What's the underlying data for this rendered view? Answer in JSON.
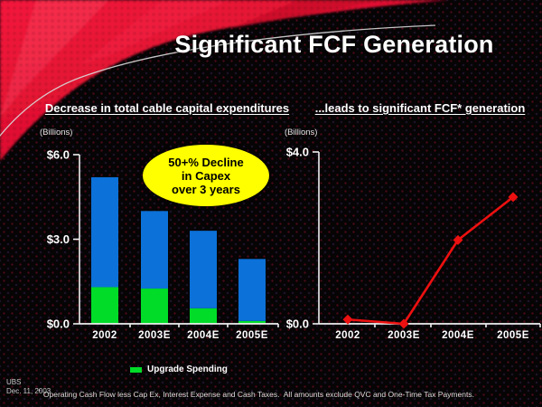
{
  "slide": {
    "title": "Significant FCF Generation",
    "source_line1": "UBS",
    "source_line2": "Dec. 11, 2003",
    "footnote_marker": "*",
    "footnote_text": "Operating Cash Flow less Cap Ex, Interest Expense and Cash Taxes.  All amounts exclude QVC and One-Time Tax Payments."
  },
  "callout": {
    "line1": "50+% Decline",
    "line2": "in Capex",
    "line3": "over 3 years",
    "fill_color": "#FFFF00",
    "text_color": "#000000"
  },
  "colors": {
    "background": "#060404",
    "corner_red": "#E51230",
    "arc_line": "#D9D9D9",
    "axis": "#F0F0F0",
    "bar_blue": "#0C71D8",
    "bar_green": "#00DC28",
    "line_red": "#ED1010",
    "text": "#FFFFFF"
  },
  "chart_data": [
    {
      "type": "bar",
      "stacked": true,
      "title": "Decrease in total cable capital expenditures",
      "units_label": "(Billions)",
      "xlabel": "",
      "ylabel": "(Billions)",
      "categories": [
        "2002",
        "2003E",
        "2004E",
        "2005E"
      ],
      "series": [
        {
          "name": "Upgrade Spending",
          "color": "#00DC28",
          "values": [
            1.3,
            1.25,
            0.55,
            0.1
          ]
        },
        {
          "name": "",
          "color": "#0C71D8",
          "values": [
            3.9,
            2.75,
            2.75,
            2.2
          ]
        }
      ],
      "stack_totals": [
        5.2,
        4.0,
        3.3,
        2.3
      ],
      "ylim": [
        0,
        6
      ],
      "y_ticks": [
        {
          "label": "$6.0",
          "value": 6
        },
        {
          "label": "$3.0",
          "value": 3
        },
        {
          "label": "$0.0",
          "value": 0
        }
      ],
      "grid": false,
      "legend": {
        "visible": true,
        "position": "bottom",
        "entries": [
          {
            "label": "Upgrade Spending",
            "color": "#00DC28"
          }
        ]
      }
    },
    {
      "type": "line",
      "title": "...leads to significant FCF* generation",
      "units_label": "(Billions)",
      "xlabel": "",
      "ylabel": "(Billions)",
      "categories": [
        "2002",
        "2003E",
        "2004E",
        "2005E"
      ],
      "series": [
        {
          "name": "FCF",
          "color": "#ED1010",
          "marker": "diamond",
          "values": [
            0.1,
            0.0,
            1.95,
            2.95
          ]
        }
      ],
      "ylim": [
        0,
        4
      ],
      "y_ticks": [
        {
          "label": "$4.0",
          "value": 4
        },
        {
          "label": "$0.0",
          "value": 0
        }
      ],
      "grid": false,
      "legend": {
        "visible": false
      }
    }
  ]
}
